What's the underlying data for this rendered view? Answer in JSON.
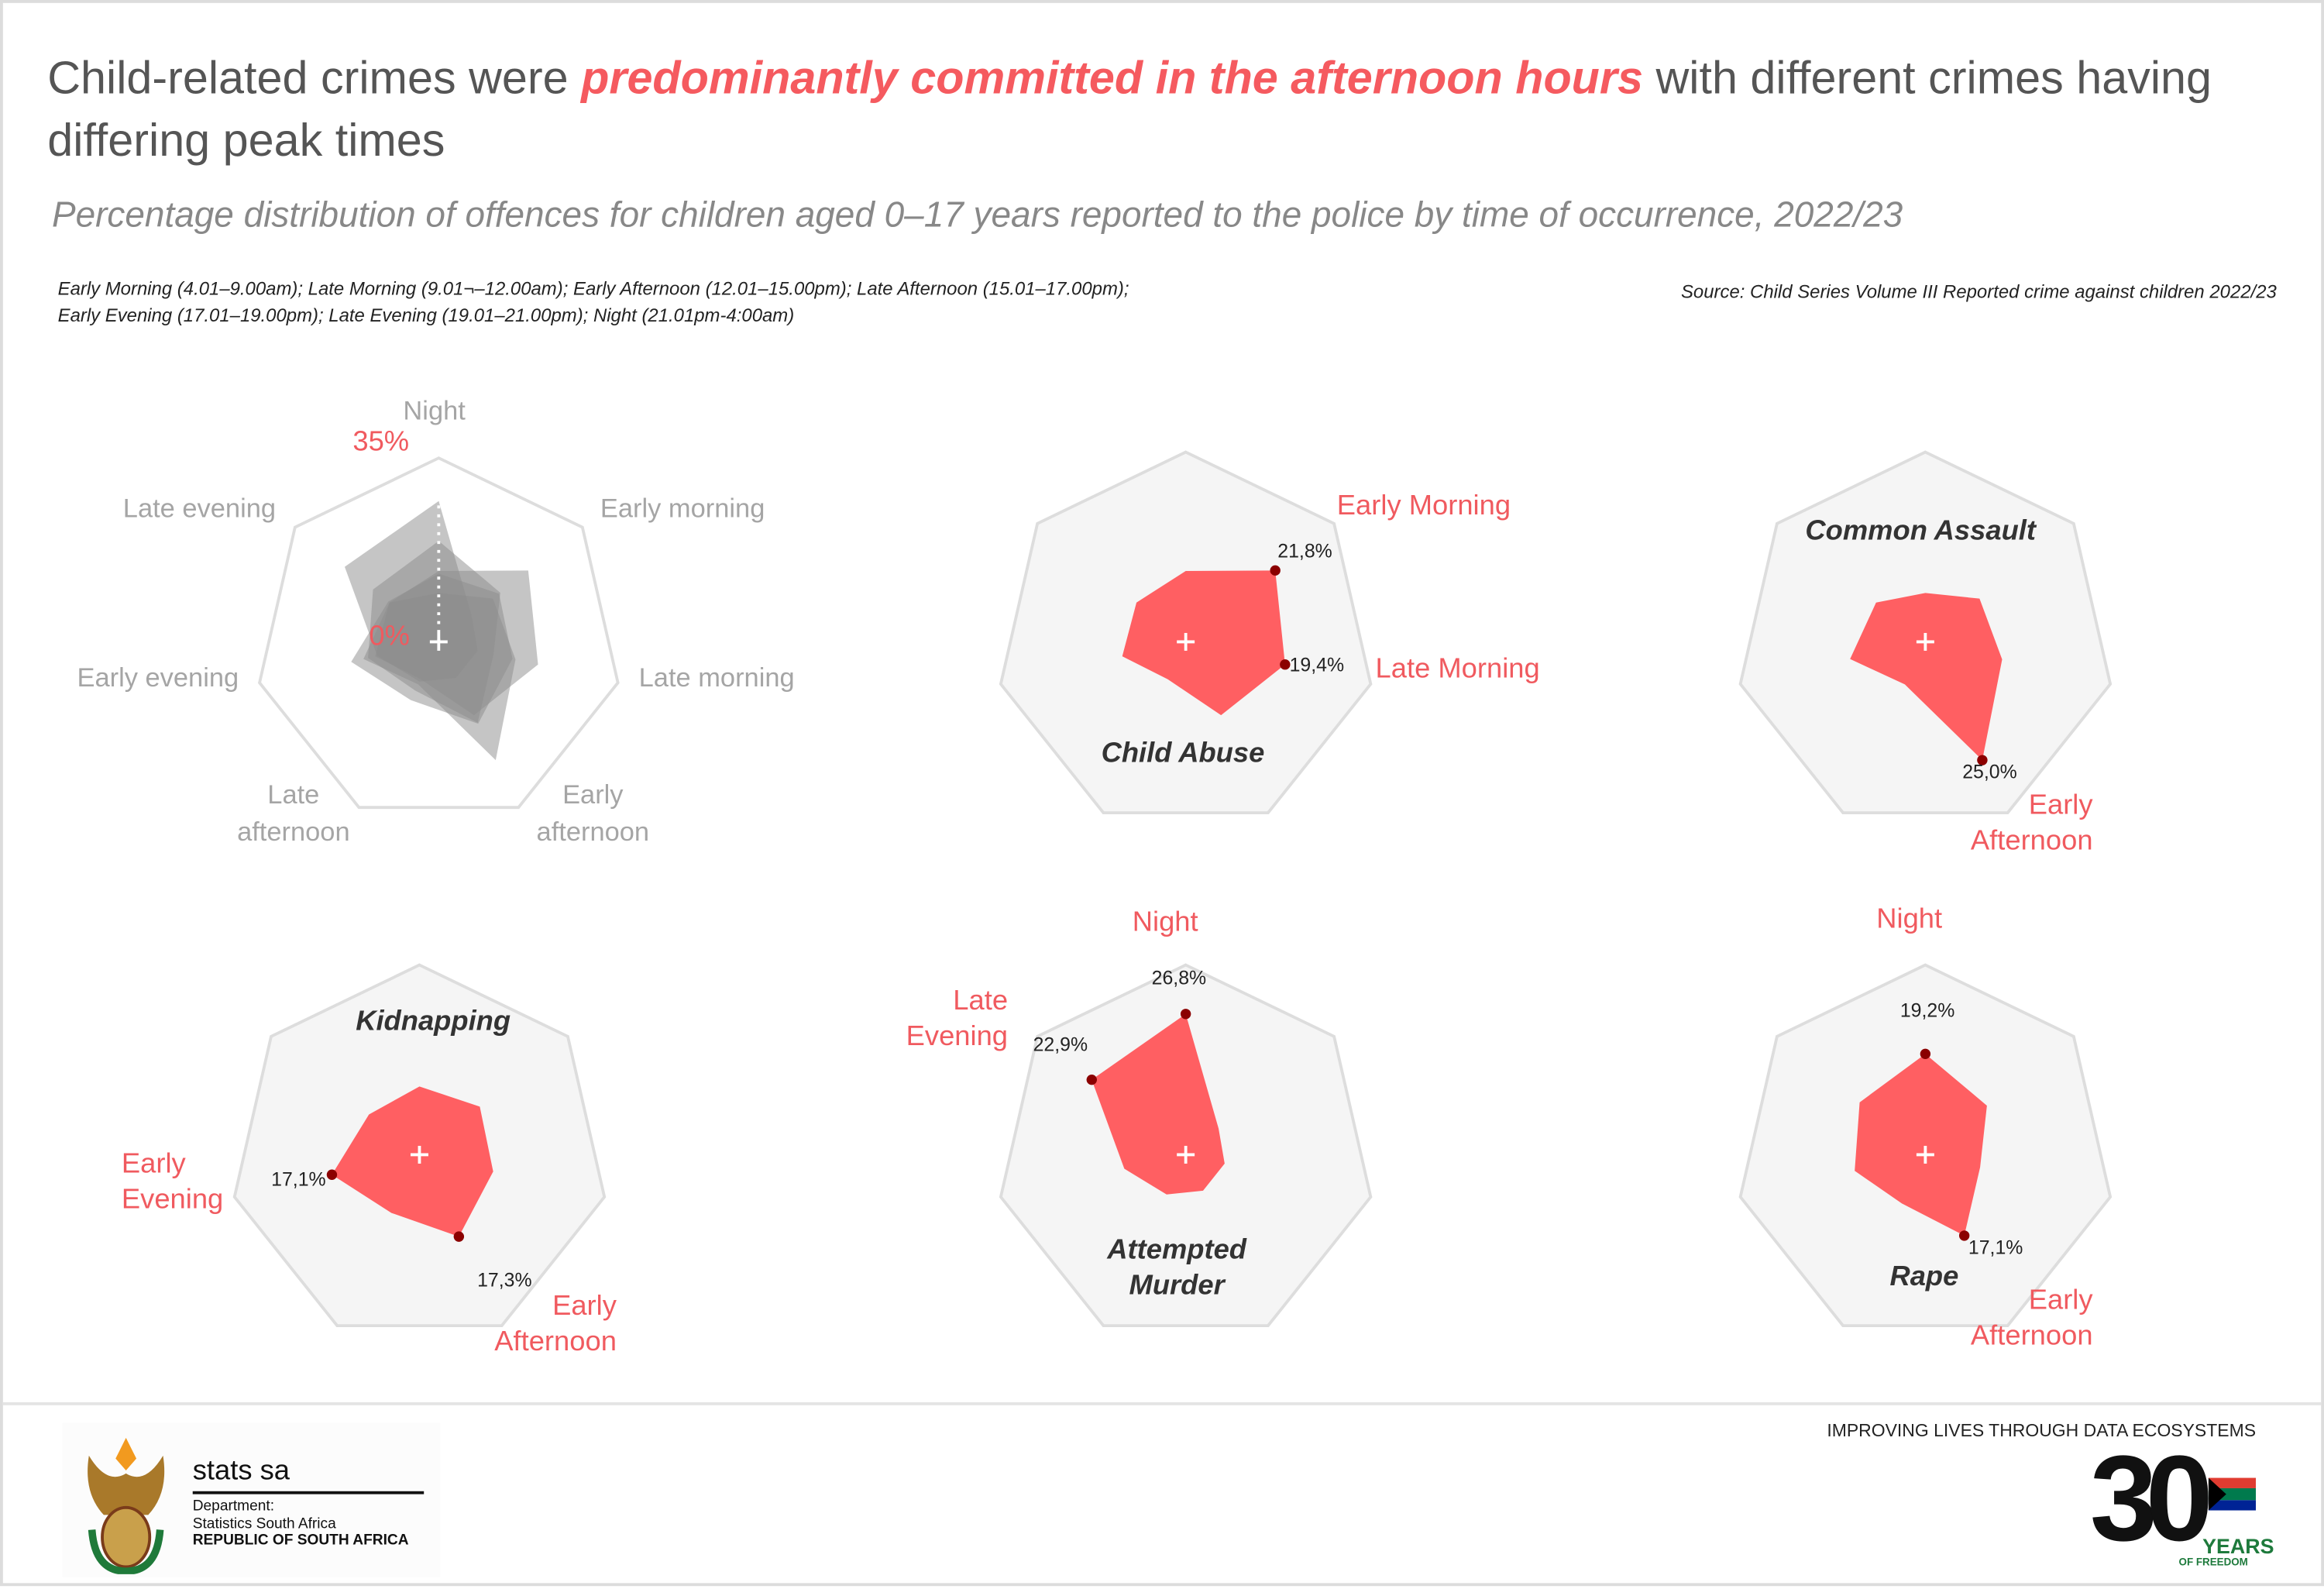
{
  "header": {
    "title_pre": "Child-related crimes were ",
    "title_highlight": "predominantly committed in the afternoon hours",
    "title_post": " with different crimes having differing peak times",
    "subtitle": "Percentage distribution of offences for children aged 0–17 years reported to the police by time of occurrence, 2022/23",
    "time_note": "Early Morning (4.01–9.00am); Late Morning (9.01¬–12.00am); Early Afternoon (12.01–15.00pm); Late Afternoon (15.01–17.00pm); Early Evening (17.01–19.00pm); Late Evening (19.01–21.00pm); Night (21.01pm-4:00am)",
    "source": "Source: Child Series Volume III Reported crime against children 2022/23"
  },
  "colors": {
    "highlight": "#f55a5f",
    "fill": "#ff5f62",
    "dot": "#8b0000",
    "grey_fill": "#8c8c8c",
    "grid": "#dddddd"
  },
  "chart_data": {
    "type": "radar",
    "axes": [
      "Night",
      "Early morning",
      "Late morning",
      "Early afternoon",
      "Late afternoon",
      "Early evening",
      "Late evening"
    ],
    "axis_labels_display": [
      "Night",
      "Early morning",
      "Late morning",
      "Early afternoon",
      "Late afternoon",
      "Early evening",
      "Late evening"
    ],
    "rlim": [
      0,
      35
    ],
    "r_tick_labels": [
      "0%",
      "35%"
    ],
    "series": [
      {
        "name": "Child Abuse",
        "values": [
          13.5,
          21.8,
          19.4,
          15.5,
          7.9,
          12.4,
          12.0
        ],
        "highlights": [
          {
            "axis": 1,
            "label": "21,8%",
            "axis_label": "Early Morning"
          },
          {
            "axis": 2,
            "label": "19,4%",
            "axis_label": "Late Morning"
          }
        ]
      },
      {
        "name": "Common Assault",
        "values": [
          9.3,
          13.2,
          15.0,
          25.0,
          9.0,
          14.7,
          12.0
        ],
        "highlights": [
          {
            "axis": 3,
            "label": "25,0%",
            "axis_label": "Early Afternoon"
          }
        ]
      },
      {
        "name": "Kidnapping",
        "values": [
          13.0,
          14.7,
          14.4,
          17.3,
          12.3,
          17.1,
          12.3
        ],
        "highlights": [
          {
            "axis": 5,
            "label": "17,1%",
            "axis_label": "Early Evening"
          },
          {
            "axis": 3,
            "label": "17,3%",
            "axis_label": "Early Afternoon"
          }
        ]
      },
      {
        "name": "Attempted Murder",
        "values": [
          26.8,
          8.0,
          7.6,
          7.6,
          8.4,
          12.0,
          22.9
        ],
        "highlights": [
          {
            "axis": 0,
            "label": "26,8%",
            "axis_label": "Night"
          },
          {
            "axis": 6,
            "label": "22,9%",
            "axis_label": "Late Evening"
          }
        ]
      },
      {
        "name": "Rape",
        "values": [
          19.2,
          15.0,
          10.7,
          17.1,
          10.3,
          13.8,
          16.0
        ],
        "highlights": [
          {
            "axis": 0,
            "label": "19,2%",
            "axis_label": "Night"
          },
          {
            "axis": 3,
            "label": "17,1%",
            "axis_label": "Early Afternoon"
          }
        ]
      }
    ]
  },
  "footer": {
    "org_name": "stats sa",
    "dept_line1": "Department:",
    "dept_line2": "Statistics South Africa",
    "dept_line3": "REPUBLIC OF SOUTH AFRICA",
    "tagline": "IMPROVING LIVES THROUGH DATA ECOSYSTEMS",
    "anniv_number": "30",
    "anniv_years": "YEARS",
    "anniv_freedom": "OF FREEDOM"
  }
}
